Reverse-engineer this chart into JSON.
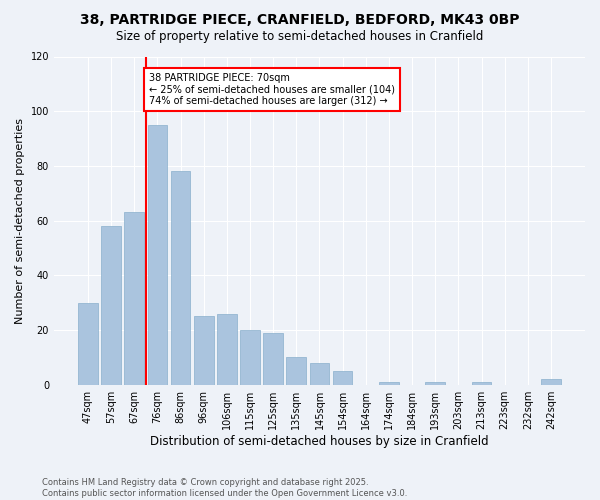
{
  "title": "38, PARTRIDGE PIECE, CRANFIELD, BEDFORD, MK43 0BP",
  "subtitle": "Size of property relative to semi-detached houses in Cranfield",
  "xlabel": "Distribution of semi-detached houses by size in Cranfield",
  "ylabel": "Number of semi-detached properties",
  "categories": [
    "47sqm",
    "57sqm",
    "67sqm",
    "76sqm",
    "86sqm",
    "96sqm",
    "106sqm",
    "115sqm",
    "125sqm",
    "135sqm",
    "145sqm",
    "154sqm",
    "164sqm",
    "174sqm",
    "184sqm",
    "193sqm",
    "203sqm",
    "213sqm",
    "223sqm",
    "232sqm",
    "242sqm"
  ],
  "values": [
    30,
    58,
    63,
    95,
    78,
    25,
    26,
    20,
    19,
    10,
    8,
    5,
    0,
    1,
    0,
    1,
    0,
    1,
    0,
    0,
    2
  ],
  "bar_color": "#aac4de",
  "bar_edge_color": "#8aafcc",
  "vline_x": 2.5,
  "vline_color": "red",
  "annotation_title": "38 PARTRIDGE PIECE: 70sqm",
  "annotation_line1": "← 25% of semi-detached houses are smaller (104)",
  "annotation_line2": "74% of semi-detached houses are larger (312) →",
  "ylim": [
    0,
    120
  ],
  "yticks": [
    0,
    20,
    40,
    60,
    80,
    100,
    120
  ],
  "background_color": "#eef2f8",
  "footer_line1": "Contains HM Land Registry data © Crown copyright and database right 2025.",
  "footer_line2": "Contains public sector information licensed under the Open Government Licence v3.0."
}
